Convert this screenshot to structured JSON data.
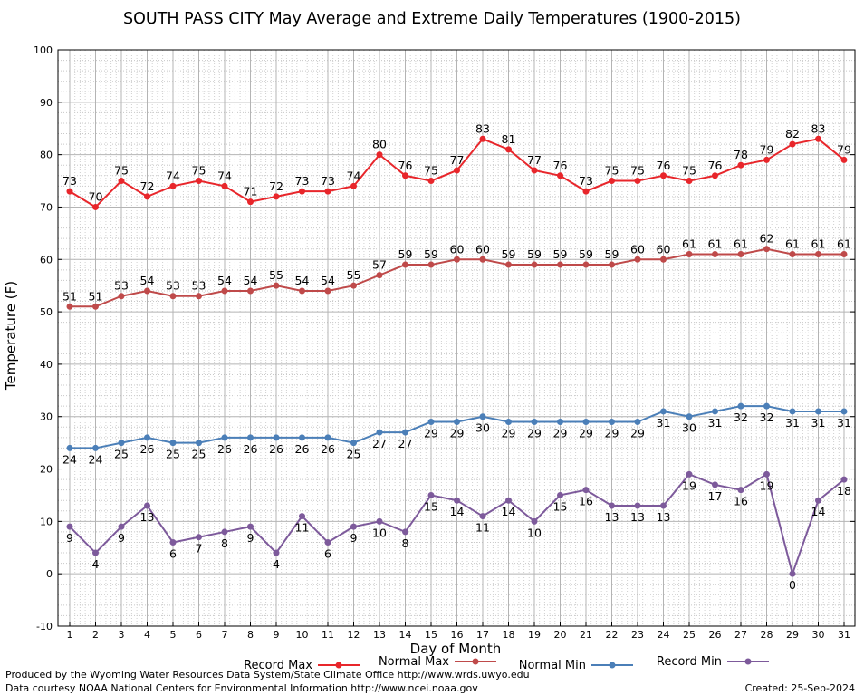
{
  "chart_data": {
    "type": "line",
    "title": "SOUTH PASS CITY May Average and Extreme Daily Temperatures (1900-2015)",
    "xlabel": "Day of Month",
    "ylabel": "Temperature (F)",
    "xlim": [
      1,
      31
    ],
    "ylim": [
      -10,
      100
    ],
    "yticks": [
      -10,
      0,
      10,
      20,
      30,
      40,
      50,
      60,
      70,
      80,
      90,
      100
    ],
    "grid": true,
    "legend_position": "bottom",
    "x": [
      1,
      2,
      3,
      4,
      5,
      6,
      7,
      8,
      9,
      10,
      11,
      12,
      13,
      14,
      15,
      16,
      17,
      18,
      19,
      20,
      21,
      22,
      23,
      24,
      25,
      26,
      27,
      28,
      29,
      30,
      31
    ],
    "series": [
      {
        "name": "Record Max",
        "color": "#e8262b",
        "label_position": "above",
        "values": [
          73,
          70,
          75,
          72,
          74,
          75,
          74,
          71,
          72,
          73,
          73,
          74,
          80,
          76,
          75,
          77,
          83,
          81,
          77,
          76,
          73,
          75,
          75,
          76,
          75,
          76,
          78,
          79,
          82,
          83,
          79
        ]
      },
      {
        "name": "Normal Max",
        "color": "#bf4a4a",
        "label_position": "above",
        "values": [
          51,
          51,
          53,
          54,
          53,
          53,
          54,
          54,
          55,
          54,
          54,
          55,
          57,
          59,
          59,
          60,
          60,
          59,
          59,
          59,
          59,
          59,
          60,
          60,
          61,
          61,
          61,
          62,
          61,
          61,
          61
        ]
      },
      {
        "name": "Normal Min",
        "color": "#4b7fb8",
        "label_position": "below",
        "values": [
          24,
          24,
          25,
          26,
          25,
          25,
          26,
          26,
          26,
          26,
          26,
          25,
          27,
          27,
          29,
          29,
          30,
          29,
          29,
          29,
          29,
          29,
          29,
          31,
          30,
          31,
          32,
          32,
          31,
          31,
          31
        ]
      },
      {
        "name": "Record Min",
        "color": "#7d5a9b",
        "label_position": "below",
        "values": [
          9,
          4,
          9,
          13,
          6,
          7,
          8,
          9,
          4,
          11,
          6,
          9,
          10,
          8,
          15,
          14,
          11,
          14,
          10,
          15,
          16,
          13,
          13,
          13,
          19,
          17,
          16,
          19,
          0,
          14,
          18
        ]
      }
    ]
  },
  "footer": {
    "produced_by": "Produced by the Wyoming Water Resources Data System/State Climate Office http://www.wrds.uwyo.edu",
    "data_courtesy": "Data courtesy NOAA National Centers for Environmental Information http://www.ncei.noaa.gov",
    "created": "Created:  25-Sep-2024"
  }
}
